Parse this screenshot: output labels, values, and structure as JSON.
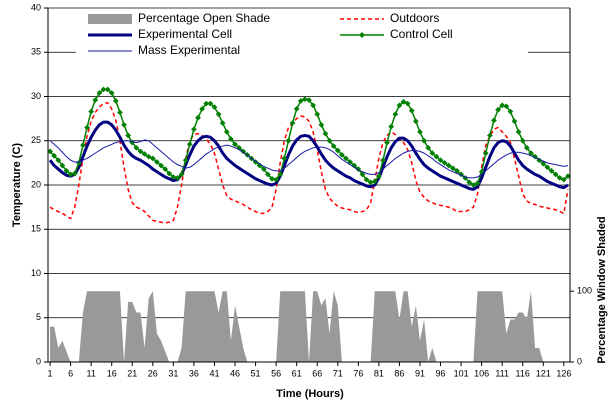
{
  "chart_data": {
    "type": "line",
    "xlabel": "Time (Hours)",
    "ylabel": "Temperature (C)",
    "y2label": "Percentage Window Shaded",
    "x": [
      1,
      2,
      3,
      4,
      5,
      6,
      7,
      8,
      9,
      10,
      11,
      12,
      13,
      14,
      15,
      16,
      17,
      18,
      19,
      20,
      21,
      22,
      23,
      24,
      25,
      26,
      27,
      28,
      29,
      30,
      31,
      32,
      33,
      34,
      35,
      36,
      37,
      38,
      39,
      40,
      41,
      42,
      43,
      44,
      45,
      46,
      47,
      48,
      49,
      50,
      51,
      52,
      53,
      54,
      55,
      56,
      57,
      58,
      59,
      60,
      61,
      62,
      63,
      64,
      65,
      66,
      67,
      68,
      69,
      70,
      71,
      72,
      73,
      74,
      75,
      76,
      77,
      78,
      79,
      80,
      81,
      82,
      83,
      84,
      85,
      86,
      87,
      88,
      89,
      90,
      91,
      92,
      93,
      94,
      95,
      96,
      97,
      98,
      99,
      100,
      101,
      102,
      103,
      104,
      105,
      106,
      107,
      108,
      109,
      110,
      111,
      112,
      113,
      114,
      115,
      116,
      117,
      118,
      119,
      120,
      121,
      122,
      123,
      124,
      125,
      126,
      127
    ],
    "xlim": [
      0.5,
      127.5
    ],
    "xticks": [
      1,
      6,
      11,
      16,
      21,
      26,
      31,
      36,
      41,
      46,
      51,
      56,
      61,
      66,
      71,
      76,
      81,
      86,
      91,
      96,
      101,
      106,
      111,
      116,
      121,
      126
    ],
    "ylim": [
      0,
      40
    ],
    "yticks": [
      0,
      5,
      10,
      15,
      20,
      25,
      30,
      35,
      40
    ],
    "y2lim": [
      0,
      500
    ],
    "y2ticks": [
      0,
      100
    ],
    "grid": true,
    "series": [
      {
        "name": "Percentage Open Shade",
        "color": "#999999",
        "kind": "area",
        "axis": "y2",
        "values": [
          50,
          50,
          20,
          30,
          15,
          0,
          0,
          0,
          70,
          100,
          100,
          100,
          100,
          100,
          100,
          100,
          100,
          100,
          0,
          85,
          85,
          70,
          70,
          20,
          90,
          100,
          40,
          30,
          15,
          0,
          0,
          0,
          20,
          100,
          100,
          100,
          100,
          100,
          100,
          100,
          100,
          70,
          100,
          100,
          30,
          80,
          50,
          20,
          0,
          0,
          0,
          0,
          0,
          0,
          0,
          0,
          100,
          100,
          100,
          100,
          100,
          100,
          100,
          0,
          100,
          100,
          80,
          90,
          40,
          100,
          80,
          0,
          0,
          0,
          0,
          0,
          0,
          0,
          0,
          100,
          100,
          100,
          100,
          100,
          100,
          60,
          100,
          100,
          50,
          80,
          30,
          60,
          0,
          20,
          0,
          0,
          0,
          0,
          0,
          0,
          0,
          0,
          0,
          0,
          100,
          100,
          100,
          100,
          100,
          100,
          100,
          40,
          60,
          60,
          70,
          70,
          60,
          100,
          20,
          20,
          0,
          0,
          0,
          0,
          0,
          0,
          0
        ]
      },
      {
        "name": "Outdoors",
        "color": "#ff0000",
        "kind": "line",
        "dashed": true,
        "width": 1.5,
        "values": [
          17.5,
          17.2,
          17.0,
          16.8,
          16.5,
          16.2,
          17.5,
          20.0,
          23.0,
          25.5,
          27.2,
          28.2,
          28.8,
          29.2,
          29.3,
          28.6,
          27.3,
          25.0,
          22.0,
          19.5,
          18.0,
          17.5,
          17.3,
          17.0,
          16.5,
          16.0,
          15.9,
          15.8,
          15.7,
          15.8,
          16.0,
          17.5,
          20.0,
          23.0,
          25.0,
          25.7,
          25.8,
          25.6,
          25.2,
          24.6,
          23.6,
          21.8,
          20.0,
          18.8,
          18.4,
          18.2,
          18.0,
          17.8,
          17.5,
          17.2,
          17.0,
          16.8,
          16.8,
          17.0,
          17.5,
          19.5,
          22.5,
          25.0,
          26.5,
          27.0,
          27.5,
          27.8,
          27.7,
          27.2,
          26.0,
          24.0,
          21.5,
          19.5,
          18.5,
          18.0,
          17.6,
          17.4,
          17.3,
          17.2,
          17.0,
          16.9,
          17.0,
          17.2,
          18.0,
          20.5,
          23.0,
          24.8,
          25.6,
          26.0,
          25.7,
          25.2,
          24.8,
          24.0,
          22.5,
          20.5,
          19.2,
          18.6,
          18.2,
          18.0,
          17.8,
          17.7,
          17.6,
          17.5,
          17.3,
          17.0,
          17.0,
          17.0,
          17.2,
          17.5,
          19.0,
          22.0,
          24.5,
          25.5,
          26.3,
          26.5,
          26.0,
          25.5,
          24.8,
          23.0,
          21.0,
          19.0,
          18.2,
          17.9,
          17.8,
          17.6,
          17.5,
          17.4,
          17.3,
          17.2,
          17.0,
          16.8,
          19.5
        ]
      },
      {
        "name": "Experimental Cell",
        "color": "#000080",
        "kind": "line",
        "width": 3,
        "values": [
          22.8,
          22.2,
          21.8,
          21.4,
          21.1,
          21.0,
          21.2,
          22.0,
          23.2,
          24.4,
          25.4,
          26.2,
          26.8,
          27.1,
          27.1,
          26.8,
          26.2,
          25.4,
          24.5,
          23.8,
          23.3,
          23.0,
          22.8,
          22.5,
          22.2,
          21.8,
          21.5,
          21.2,
          20.9,
          20.7,
          20.5,
          20.6,
          21.2,
          22.3,
          23.4,
          24.4,
          25.0,
          25.4,
          25.5,
          25.4,
          25.0,
          24.4,
          23.6,
          23.0,
          22.6,
          22.2,
          21.9,
          21.6,
          21.3,
          21.0,
          20.7,
          20.5,
          20.3,
          20.1,
          20.0,
          20.2,
          21.0,
          22.2,
          23.4,
          24.4,
          25.1,
          25.5,
          25.6,
          25.5,
          25.0,
          24.3,
          23.5,
          22.8,
          22.3,
          21.9,
          21.6,
          21.3,
          21.0,
          20.8,
          20.5,
          20.3,
          20.1,
          19.9,
          19.8,
          20.0,
          20.8,
          22.0,
          23.2,
          24.2,
          24.9,
          25.3,
          25.3,
          25.0,
          24.4,
          23.6,
          22.9,
          22.3,
          21.9,
          21.6,
          21.3,
          21.0,
          20.8,
          20.6,
          20.4,
          20.2,
          20.0,
          19.8,
          19.6,
          19.5,
          19.8,
          20.8,
          22.0,
          23.2,
          24.2,
          24.8,
          25.0,
          24.9,
          24.4,
          23.6,
          22.8,
          22.2,
          21.8,
          21.5,
          21.2,
          21.0,
          20.7,
          20.4,
          20.2,
          20.0,
          19.8,
          19.7,
          20.0
        ]
      },
      {
        "name": "Control Cell",
        "color": "#008000",
        "kind": "line",
        "marker": "diamond",
        "width": 1.5,
        "values": [
          23.8,
          23.3,
          22.8,
          22.2,
          21.6,
          21.2,
          21.3,
          22.5,
          24.5,
          26.5,
          28.3,
          29.6,
          30.4,
          30.8,
          30.8,
          30.4,
          29.5,
          28.2,
          26.8,
          25.6,
          24.8,
          24.2,
          23.8,
          23.5,
          23.2,
          23.0,
          22.6,
          22.2,
          21.8,
          21.3,
          20.9,
          20.8,
          21.2,
          22.8,
          24.6,
          26.3,
          27.6,
          28.6,
          29.2,
          29.2,
          28.8,
          28.0,
          27.0,
          26.0,
          25.2,
          24.6,
          24.2,
          23.8,
          23.4,
          23.0,
          22.6,
          22.2,
          21.8,
          21.2,
          20.7,
          20.6,
          21.2,
          23.0,
          25.0,
          27.0,
          28.6,
          29.5,
          29.7,
          29.6,
          29.0,
          28.0,
          26.8,
          25.8,
          25.0,
          24.4,
          23.9,
          23.4,
          23.0,
          22.6,
          22.2,
          21.8,
          21.2,
          20.6,
          20.3,
          20.4,
          21.0,
          22.8,
          24.8,
          26.6,
          28.0,
          29.0,
          29.4,
          29.2,
          28.4,
          27.2,
          26.0,
          25.0,
          24.2,
          23.6,
          23.2,
          22.8,
          22.5,
          22.2,
          21.9,
          21.6,
          21.2,
          20.8,
          20.3,
          20.0,
          20.2,
          21.5,
          23.6,
          25.6,
          27.3,
          28.5,
          29.0,
          28.9,
          28.3,
          27.2,
          26.0,
          25.0,
          24.2,
          23.6,
          23.2,
          22.8,
          22.4,
          22.0,
          21.6,
          21.2,
          20.8,
          20.6,
          21.0
        ]
      },
      {
        "name": "Mass Experimental",
        "color": "#1a1aa6",
        "kind": "line",
        "width": 1,
        "values": [
          25.0,
          24.6,
          24.2,
          23.7,
          23.2,
          22.8,
          22.6,
          22.6,
          22.8,
          23.0,
          23.3,
          23.6,
          23.9,
          24.2,
          24.4,
          24.6,
          24.8,
          24.9,
          25.0,
          25.0,
          24.9,
          24.8,
          24.9,
          25.1,
          25.0,
          24.6,
          24.2,
          23.8,
          23.4,
          23.0,
          22.6,
          22.3,
          22.1,
          21.9,
          22.0,
          22.3,
          22.7,
          23.1,
          23.5,
          23.8,
          24.1,
          24.3,
          24.4,
          24.5,
          24.4,
          24.2,
          24.0,
          23.7,
          23.4,
          23.0,
          22.7,
          22.4,
          22.1,
          21.9,
          21.7,
          21.6,
          21.6,
          21.9,
          22.3,
          22.7,
          23.1,
          23.5,
          23.8,
          24.0,
          24.2,
          24.3,
          24.3,
          24.2,
          24.0,
          23.7,
          23.3,
          22.9,
          22.6,
          22.3,
          22.0,
          21.7,
          21.5,
          21.3,
          21.2,
          21.2,
          21.4,
          21.8,
          22.2,
          22.6,
          23.0,
          23.3,
          23.6,
          23.8,
          23.9,
          23.9,
          23.8,
          23.6,
          23.3,
          23.0,
          22.6,
          22.3,
          22.0,
          21.7,
          21.5,
          21.3,
          21.1,
          20.9,
          20.8,
          20.8,
          20.9,
          21.2,
          21.6,
          22.0,
          22.4,
          22.8,
          23.1,
          23.4,
          23.6,
          23.7,
          23.7,
          23.6,
          23.5,
          23.3,
          23.1,
          22.9,
          22.7,
          22.5,
          22.4,
          22.3,
          22.2,
          22.1,
          22.2
        ]
      }
    ]
  }
}
